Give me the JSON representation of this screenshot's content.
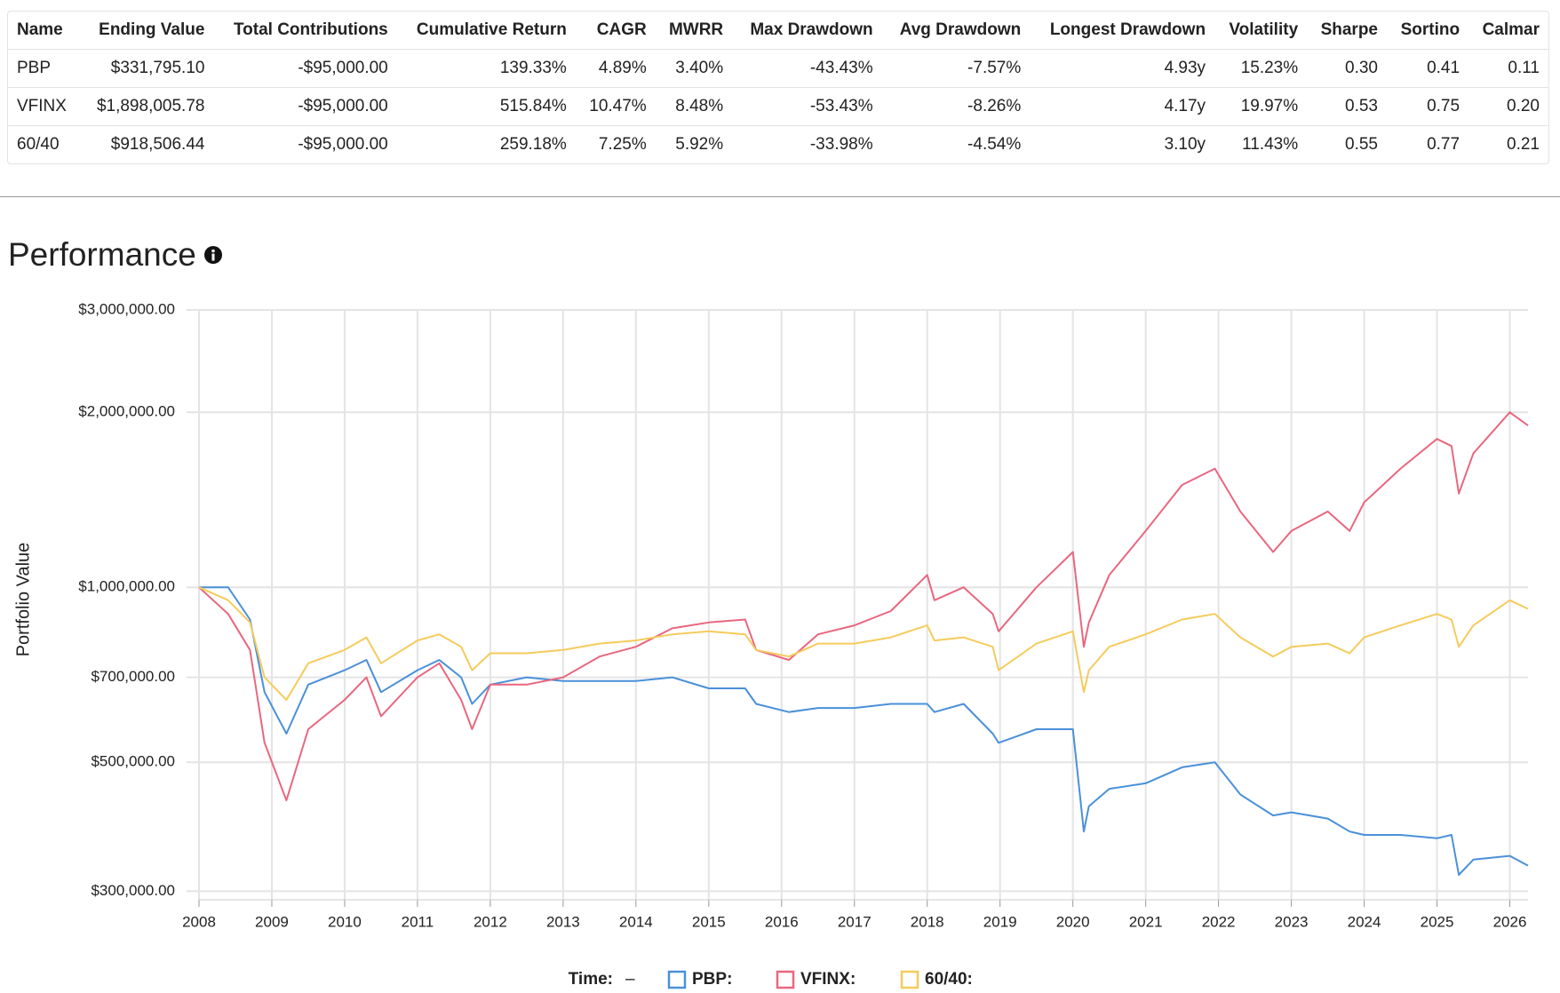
{
  "table": {
    "columns": [
      "Name",
      "Ending Value",
      "Total Contributions",
      "Cumulative Return",
      "CAGR",
      "MWRR",
      "Max Drawdown",
      "Avg Drawdown",
      "Longest Drawdown",
      "Volatility",
      "Sharpe",
      "Sortino",
      "Calmar"
    ],
    "rows": [
      [
        "PBP",
        "$331,795.10",
        "-$95,000.00",
        "139.33%",
        "4.89%",
        "3.40%",
        "-43.43%",
        "-7.57%",
        "4.93y",
        "15.23%",
        "0.30",
        "0.41",
        "0.11"
      ],
      [
        "VFINX",
        "$1,898,005.78",
        "-$95,000.00",
        "515.84%",
        "10.47%",
        "8.48%",
        "-53.43%",
        "-8.26%",
        "4.17y",
        "19.97%",
        "0.53",
        "0.75",
        "0.20"
      ],
      [
        "60/40",
        "$918,506.44",
        "-$95,000.00",
        "259.18%",
        "7.25%",
        "5.92%",
        "-33.98%",
        "-4.54%",
        "3.10y",
        "11.43%",
        "0.55",
        "0.77",
        "0.21"
      ]
    ]
  },
  "section_title": "Performance",
  "chart_data": {
    "type": "line",
    "ylabel": "Portfolio Value",
    "yscale": "log",
    "grid": true,
    "x": [
      2008,
      2008.4,
      2008.7,
      2008.9,
      2009.2,
      2009.5,
      2010,
      2010.3,
      2010.5,
      2011,
      2011.3,
      2011.6,
      2011.75,
      2012,
      2012.5,
      2013,
      2013.5,
      2014,
      2014.5,
      2015,
      2015.5,
      2015.65,
      2016.1,
      2016.5,
      2017,
      2017.5,
      2018,
      2018.1,
      2018.5,
      2018.9,
      2018.98,
      2019.5,
      2020,
      2020.15,
      2020.22,
      2020.5,
      2021,
      2021.5,
      2021.95,
      2022.3,
      2022.75,
      2023,
      2023.5,
      2023.8,
      2024,
      2024.5,
      2025,
      2025.2,
      2025.3,
      2025.5,
      2026,
      2026.25
    ],
    "series": [
      {
        "name": "PBP:",
        "color": "#4a90d9",
        "values": [
          1000000,
          1000000,
          880000,
          660000,
          560000,
          680000,
          720000,
          750000,
          660000,
          720000,
          750000,
          700000,
          630000,
          680000,
          700000,
          690000,
          690000,
          690000,
          700000,
          670000,
          670000,
          630000,
          610000,
          620000,
          620000,
          630000,
          630000,
          610000,
          630000,
          560000,
          540000,
          570000,
          570000,
          380000,
          420000,
          450000,
          460000,
          490000,
          500000,
          440000,
          405000,
          410000,
          400000,
          380000,
          375000,
          375000,
          370000,
          375000,
          320000,
          340000,
          345000,
          332000
        ]
      },
      {
        "name": "VFINX:",
        "color": "#e8677f",
        "values": [
          1000000,
          900000,
          780000,
          540000,
          430000,
          570000,
          640000,
          700000,
          600000,
          700000,
          740000,
          640000,
          570000,
          680000,
          680000,
          700000,
          760000,
          790000,
          850000,
          870000,
          880000,
          780000,
          750000,
          830000,
          860000,
          910000,
          1050000,
          950000,
          1000000,
          900000,
          840000,
          1000000,
          1150000,
          790000,
          870000,
          1050000,
          1250000,
          1500000,
          1600000,
          1350000,
          1150000,
          1250000,
          1350000,
          1250000,
          1400000,
          1600000,
          1800000,
          1750000,
          1450000,
          1700000,
          2000000,
          1898000
        ]
      },
      {
        "name": "60/40:",
        "color": "#f5cb5c",
        "values": [
          1000000,
          950000,
          870000,
          700000,
          640000,
          740000,
          780000,
          820000,
          740000,
          810000,
          830000,
          790000,
          720000,
          770000,
          770000,
          780000,
          800000,
          810000,
          830000,
          840000,
          830000,
          780000,
          760000,
          800000,
          800000,
          820000,
          860000,
          810000,
          820000,
          790000,
          720000,
          800000,
          840000,
          660000,
          720000,
          790000,
          830000,
          880000,
          900000,
          820000,
          760000,
          790000,
          800000,
          770000,
          820000,
          860000,
          900000,
          880000,
          790000,
          860000,
          950000,
          918000
        ]
      }
    ],
    "xlim": [
      2008,
      2026.25
    ],
    "xticks": [
      2008,
      2009,
      2010,
      2011,
      2012,
      2013,
      2014,
      2015,
      2016,
      2017,
      2018,
      2019,
      2020,
      2021,
      2022,
      2023,
      2024,
      2025,
      2026
    ],
    "ylim": [
      290000,
      3000000
    ],
    "yticks": [
      {
        "value": 300000,
        "label": "$300,000.00"
      },
      {
        "value": 500000,
        "label": "$500,000.00"
      },
      {
        "value": 700000,
        "label": "$700,000.00"
      },
      {
        "value": 1000000,
        "label": "$1,000,000.00"
      },
      {
        "value": 2000000,
        "label": "$2,000,000.00"
      },
      {
        "value": 3000000,
        "label": "$3,000,000.00"
      }
    ],
    "legend": {
      "title": "Time:",
      "value": "–"
    }
  }
}
